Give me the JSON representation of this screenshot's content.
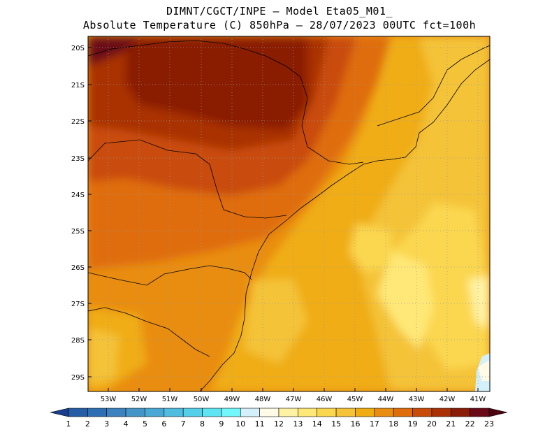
{
  "title": {
    "line1": "DIMNT/CGCT/INPE –  Model Eta05_M01_",
    "line2": "Absolute Temperature (C) 850hPa –  28/07/2023 00UTC fct=100h"
  },
  "map": {
    "lat_labels": [
      "20S",
      "21S",
      "22S",
      "23S",
      "24S",
      "25S",
      "26S",
      "27S",
      "28S",
      "29S"
    ],
    "lon_labels": [
      "53W",
      "52W",
      "51W",
      "50W",
      "49W",
      "48W",
      "47W",
      "46W",
      "45W",
      "44W",
      "43W",
      "42W",
      "41W"
    ],
    "lat_range": [
      -29.4,
      -19.8
    ],
    "lon_range": [
      -53.7,
      -40.7
    ],
    "grid": "dotted"
  },
  "colorbar": {
    "labels": [
      "1",
      "2",
      "3",
      "4",
      "5",
      "6",
      "7",
      "8",
      "9",
      "10",
      "11",
      "12",
      "13",
      "14",
      "15",
      "16",
      "17",
      "18",
      "19",
      "20",
      "21",
      "22",
      "23"
    ],
    "colors": [
      "#1a3e8c",
      "#245ca6",
      "#2d6fb3",
      "#3c82bf",
      "#4596c8",
      "#4aa9d4",
      "#50bcdf",
      "#56cfe9",
      "#5ee4f2",
      "#72f7fc",
      "#d4f1fb",
      "#fffbe6",
      "#fff3a3",
      "#ffe877",
      "#fbd74f",
      "#f4c338",
      "#f0ad13",
      "#e98d10",
      "#df6d0c",
      "#c94b08",
      "#a93105",
      "#8a1d06",
      "#6b0a17",
      "#4d0410"
    ]
  }
}
